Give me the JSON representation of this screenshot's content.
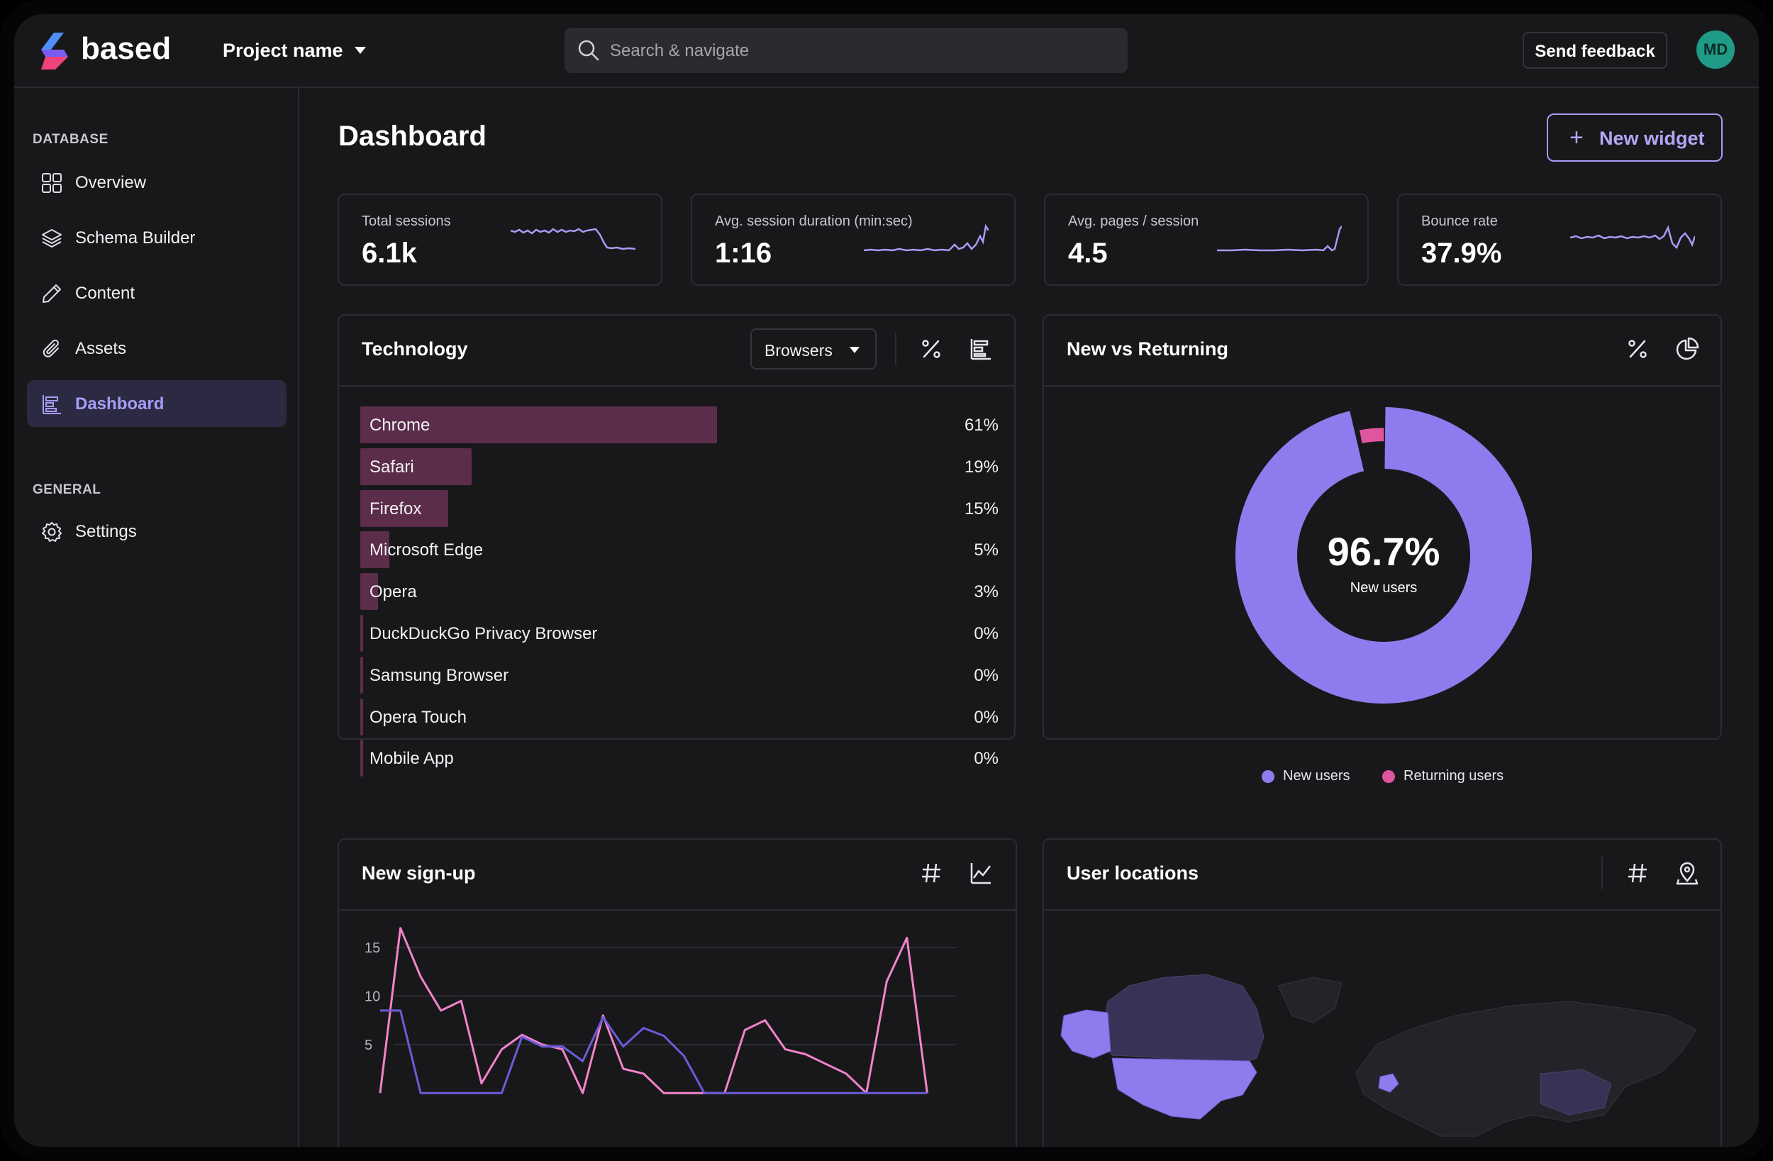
{
  "app": {
    "brand": "based",
    "project": "Project name",
    "search_placeholder": "Search & navigate",
    "feedback_label": "Send feedback",
    "avatar_initials": "MD"
  },
  "sidebar": {
    "sections": [
      {
        "label": "DATABASE",
        "items": [
          {
            "label": "Overview",
            "icon": "grid-icon"
          },
          {
            "label": "Schema Builder",
            "icon": "layers-icon"
          },
          {
            "label": "Content",
            "icon": "pencil-icon"
          },
          {
            "label": "Assets",
            "icon": "paperclip-icon"
          },
          {
            "label": "Dashboard",
            "icon": "bar-chart-icon",
            "active": true
          }
        ]
      },
      {
        "label": "GENERAL",
        "items": [
          {
            "label": "Settings",
            "icon": "gear-icon"
          }
        ]
      }
    ]
  },
  "main": {
    "title": "Dashboard",
    "new_widget_label": "New widget",
    "stats": [
      {
        "label": "Total sessions",
        "value": "6.1k"
      },
      {
        "label": "Avg. session duration (min:sec)",
        "value": "1:16"
      },
      {
        "label": "Avg. pages / session",
        "value": "4.5"
      },
      {
        "label": "Bounce rate",
        "value": "37.9%"
      }
    ],
    "technology": {
      "title": "Technology",
      "select_value": "Browsers",
      "rows": [
        {
          "label": "Chrome",
          "pct_label": "61%",
          "pct": 61
        },
        {
          "label": "Safari",
          "pct_label": "19%",
          "pct": 19
        },
        {
          "label": "Firefox",
          "pct_label": "15%",
          "pct": 15
        },
        {
          "label": "Microsoft Edge",
          "pct_label": "5%",
          "pct": 5
        },
        {
          "label": "Opera",
          "pct_label": "3%",
          "pct": 3
        },
        {
          "label": "DuckDuckGo Privacy Browser",
          "pct_label": "0%",
          "pct": 0
        },
        {
          "label": "Samsung Browser",
          "pct_label": "0%",
          "pct": 0
        },
        {
          "label": "Opera Touch",
          "pct_label": "0%",
          "pct": 0
        },
        {
          "label": "Mobile App",
          "pct_label": "0%",
          "pct": 0
        }
      ]
    },
    "new_vs_returning": {
      "title": "New vs Returning",
      "center_value": "96.7%",
      "center_label": "New users",
      "legend": [
        {
          "label": "New users",
          "color": "#8e7cee"
        },
        {
          "label": "Returning users",
          "color": "#e0559f"
        }
      ]
    },
    "signups": {
      "title": "New sign-up"
    },
    "locations": {
      "title": "User locations"
    }
  },
  "colors": {
    "accent": "#a79cf5",
    "bar": "#5c2d4b",
    "new_users": "#8e7cee",
    "returning_users": "#e0559f",
    "series_a": "#f184c9",
    "series_b": "#6b5bd8"
  },
  "chart_data": [
    {
      "type": "pie",
      "title": "New vs Returning",
      "labels": [
        "New users",
        "Returning users"
      ],
      "values": [
        96.7,
        3.3
      ]
    },
    {
      "type": "line",
      "title": "New sign-up",
      "y_ticks": [
        "15",
        "10",
        "5"
      ],
      "ylim": [
        0,
        18
      ],
      "x": [
        1,
        2,
        3,
        4,
        5,
        6,
        7,
        8,
        9,
        10,
        11,
        12,
        13,
        14,
        15,
        16,
        17,
        18,
        19,
        20,
        21,
        22,
        23,
        24,
        25,
        26,
        27,
        28
      ],
      "series": [
        {
          "values": [
            0,
            17,
            12,
            8.5,
            9.5,
            1,
            4.5,
            6,
            5,
            4.5,
            0,
            8,
            2.5,
            2,
            0,
            0,
            0,
            0,
            6.5,
            7.5,
            4.5,
            4,
            3,
            2,
            0,
            11.5,
            16,
            0
          ]
        },
        {
          "values": [
            8.5,
            8.5,
            0,
            0,
            0,
            0,
            0,
            5.8,
            4.8,
            4.8,
            3.3,
            7.8,
            4.8,
            6.7,
            5.9,
            3.8,
            0,
            0,
            0,
            0,
            0,
            0,
            0,
            0,
            0,
            0,
            0,
            0
          ]
        }
      ]
    }
  ]
}
